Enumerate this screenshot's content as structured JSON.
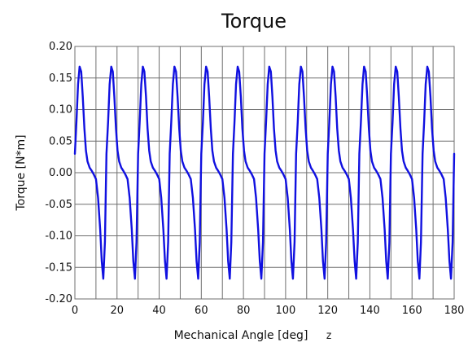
{
  "chart_data": {
    "type": "line",
    "title": "Torque",
    "xlabel": "Mechanical Angle [deg]",
    "ylabel": "Torque [N*m]",
    "xlabel_marker": "z",
    "xlim": [
      0,
      180
    ],
    "ylim": [
      -0.2,
      0.2
    ],
    "xticks": [
      0,
      20,
      40,
      60,
      80,
      100,
      120,
      140,
      160,
      180
    ],
    "yticks": [
      -0.2,
      -0.15,
      -0.1,
      -0.05,
      0.0,
      0.05,
      0.1,
      0.15,
      0.2
    ],
    "grid": true,
    "period_deg": 15,
    "series": [
      {
        "color": "#1010e0",
        "points_one_period": [
          [
            0,
            0.03
          ],
          [
            0.75,
            0.08
          ],
          [
            1.5,
            0.14
          ],
          [
            2.25,
            0.168
          ],
          [
            3,
            0.16
          ],
          [
            3.75,
            0.12
          ],
          [
            4.5,
            0.07
          ],
          [
            5.25,
            0.035
          ],
          [
            6,
            0.018
          ],
          [
            7,
            0.008
          ],
          [
            8,
            0.003
          ],
          [
            8.5,
            0.0
          ],
          [
            9,
            -0.003
          ],
          [
            10,
            -0.01
          ],
          [
            11,
            -0.04
          ],
          [
            12,
            -0.09
          ],
          [
            12.75,
            -0.14
          ],
          [
            13.5,
            -0.168
          ],
          [
            14.25,
            -0.11
          ],
          [
            15,
            0.03
          ]
        ]
      }
    ]
  }
}
